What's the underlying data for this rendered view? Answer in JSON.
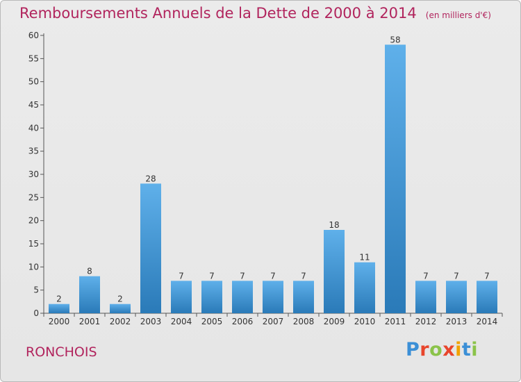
{
  "header": {
    "title": "Remboursements Annuels de la Dette de 2000 à 2014",
    "subtitle": "(en milliers d'€)"
  },
  "commune": "RONCHOIS",
  "brand": {
    "letters": [
      "P",
      "r",
      "o",
      "x",
      "i",
      "t",
      "i"
    ],
    "colors": [
      "#3b8fd6",
      "#e8452c",
      "#8bc34a",
      "#e8452c",
      "#f2a200",
      "#3b8fd6",
      "#8bc34a"
    ]
  },
  "chart_data": {
    "type": "bar",
    "title": "Remboursements Annuels de la Dette de 2000 à 2014",
    "subtitle": "(en milliers d'€)",
    "xlabel": "",
    "ylabel": "",
    "categories": [
      "2000",
      "2001",
      "2002",
      "2003",
      "2004",
      "2005",
      "2006",
      "2007",
      "2008",
      "2009",
      "2010",
      "2011",
      "2012",
      "2013",
      "2014"
    ],
    "values": [
      2,
      8,
      2,
      28,
      7,
      7,
      7,
      7,
      7,
      18,
      11,
      58,
      7,
      7,
      7
    ],
    "data_labels": [
      "2",
      "8",
      "2",
      "28",
      "7",
      "7",
      "7",
      "7",
      "7",
      "18",
      "11",
      "58",
      "7",
      "7",
      "7"
    ],
    "ylim": [
      0,
      60
    ],
    "yticks": [
      "0",
      "5",
      "10",
      "15",
      "20",
      "25",
      "30",
      "35",
      "40",
      "45",
      "50",
      "55",
      "60"
    ],
    "grid": false,
    "legend": "none",
    "bar_color_top": "#5fb0ea",
    "bar_color_bottom": "#2a7ab8"
  }
}
